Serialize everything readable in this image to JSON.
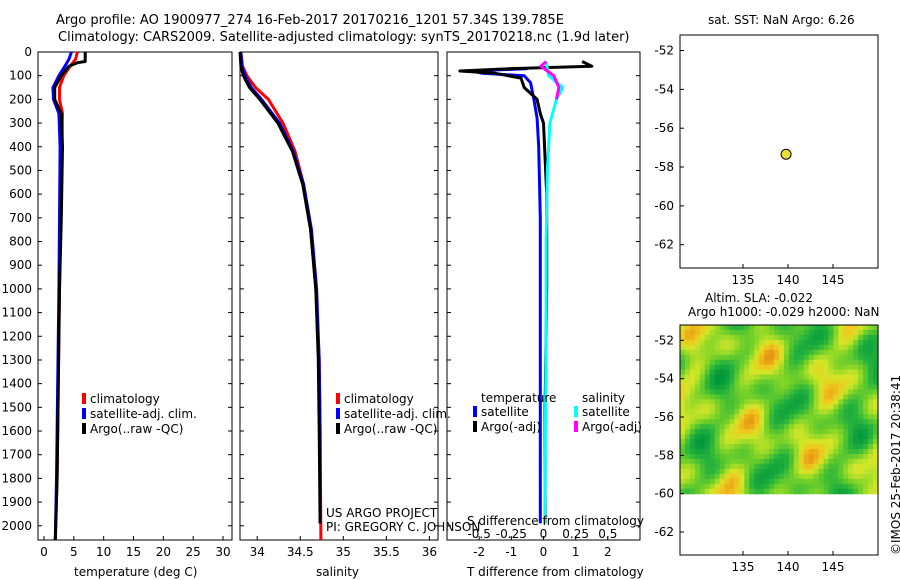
{
  "header": {
    "line1": "Argo profile: AO 1900977_274 16-Feb-2017 20170216_1201 57.34S 139.785E",
    "line2": "Climatology: CARS2009. Satellite-adjusted climatology: synTS_20170218.nc (1.9d later)"
  },
  "depth_axis": {
    "ticks": [
      "0",
      "100",
      "200",
      "300",
      "400",
      "500",
      "600",
      "700",
      "800",
      "900",
      "1000",
      "1100",
      "1200",
      "1300",
      "1400",
      "1500",
      "1600",
      "1700",
      "1800",
      "1900",
      "2000"
    ],
    "ylim": [
      0,
      2060
    ]
  },
  "colors": {
    "climatology": "#ff0000",
    "satellite": "#0000ff",
    "argo": "#000000",
    "sal_satellite": "#00ffff",
    "sal_argo": "#ff00ff",
    "marker": "#e8e030"
  },
  "chart_data": [
    {
      "type": "line",
      "id": "temperature",
      "xlabel": "temperature (deg C)",
      "xlim": [
        -1,
        31.5
      ],
      "xticks": [
        "0",
        "5",
        "10",
        "15",
        "20",
        "25",
        "30"
      ],
      "xtick_values": [
        0,
        5,
        10,
        15,
        20,
        25,
        30
      ],
      "legend": [
        "climatology",
        "satellite-adj. clim.",
        "Argo(..raw -QC)"
      ],
      "series": [
        {
          "name": "climatology",
          "color": "#ff0000",
          "points": [
            [
              5.6,
              0
            ],
            [
              5.3,
              30
            ],
            [
              4.4,
              60
            ],
            [
              3.3,
              100
            ],
            [
              2.6,
              150
            ],
            [
              2.6,
              200
            ],
            [
              3.1,
              260
            ],
            [
              3.0,
              400
            ],
            [
              2.8,
              700
            ],
            [
              2.6,
              1000
            ],
            [
              2.4,
              1400
            ],
            [
              2.2,
              1800
            ],
            [
              1.9,
              2060
            ]
          ]
        },
        {
          "name": "satellite-adj. clim.",
          "color": "#0000ff",
          "points": [
            [
              4.6,
              0
            ],
            [
              4.2,
              30
            ],
            [
              3.5,
              60
            ],
            [
              2.5,
              100
            ],
            [
              1.5,
              150
            ],
            [
              1.6,
              200
            ],
            [
              2.5,
              260
            ],
            [
              2.7,
              400
            ],
            [
              2.6,
              700
            ],
            [
              2.5,
              1000
            ],
            [
              2.3,
              1400
            ],
            [
              2.1,
              1800
            ],
            [
              1.9,
              2060
            ]
          ]
        },
        {
          "name": "Argo(..raw -QC)",
          "color": "#000000",
          "points": [
            [
              6.9,
              0
            ],
            [
              6.9,
              40
            ],
            [
              5.6,
              45
            ],
            [
              4.2,
              60
            ],
            [
              2.9,
              100
            ],
            [
              1.8,
              150
            ],
            [
              1.8,
              200
            ],
            [
              2.9,
              260
            ],
            [
              3.1,
              400
            ],
            [
              2.9,
              700
            ],
            [
              2.6,
              1000
            ],
            [
              2.4,
              1400
            ],
            [
              2.2,
              1800
            ],
            [
              1.9,
              2060
            ]
          ]
        }
      ]
    },
    {
      "type": "line",
      "id": "salinity",
      "xlabel": "salinity",
      "xlim": [
        33.8,
        36.1
      ],
      "xticks": [
        "34",
        "34.5",
        "35",
        "35.5",
        "36"
      ],
      "xtick_values": [
        34,
        34.5,
        35,
        35.5,
        36
      ],
      "legend": [
        "climatology",
        "satellite-adj. clim.",
        "Argo(..raw -QC)"
      ],
      "series": [
        {
          "name": "climatology",
          "color": "#ff0000",
          "points": [
            [
              33.81,
              0
            ],
            [
              33.83,
              60
            ],
            [
              33.88,
              100
            ],
            [
              33.98,
              150
            ],
            [
              34.13,
              200
            ],
            [
              34.3,
              300
            ],
            [
              34.44,
              420
            ],
            [
              34.54,
              560
            ],
            [
              34.62,
              750
            ],
            [
              34.68,
              1000
            ],
            [
              34.72,
              1300
            ],
            [
              34.73,
              1600
            ],
            [
              34.74,
              2060
            ]
          ]
        },
        {
          "name": "satellite-adj. clim.",
          "color": "#0000ff",
          "points": [
            [
              33.81,
              0
            ],
            [
              33.82,
              60
            ],
            [
              33.86,
              100
            ],
            [
              33.93,
              150
            ],
            [
              34.05,
              200
            ],
            [
              34.26,
              300
            ],
            [
              34.42,
              420
            ],
            [
              34.54,
              560
            ],
            [
              34.63,
              750
            ],
            [
              34.69,
              1000
            ],
            [
              34.72,
              1300
            ],
            [
              34.73,
              1600
            ],
            [
              34.73,
              1990
            ]
          ]
        },
        {
          "name": "Argo(..raw -QC)",
          "color": "#000000",
          "points": [
            [
              33.8,
              0
            ],
            [
              33.81,
              60
            ],
            [
              33.84,
              100
            ],
            [
              33.91,
              150
            ],
            [
              34.03,
              200
            ],
            [
              34.24,
              300
            ],
            [
              34.41,
              420
            ],
            [
              34.53,
              560
            ],
            [
              34.62,
              750
            ],
            [
              34.68,
              1000
            ],
            [
              34.71,
              1300
            ],
            [
              34.72,
              1600
            ],
            [
              34.73,
              1990
            ]
          ]
        }
      ],
      "annotation": [
        "US ARGO PROJECT",
        "PI: GREGORY C. JOHNSON"
      ]
    },
    {
      "type": "line",
      "id": "difference",
      "xlabel": "T difference from climatology",
      "xlim": [
        -3,
        3
      ],
      "xticks": [
        "-2",
        "-1",
        "0",
        "1",
        "2"
      ],
      "xtick_values": [
        -2,
        -1,
        0,
        1,
        2
      ],
      "top_label": "S difference from climatology",
      "top_xticks": [
        "-0.5",
        "-0.25",
        "0",
        "0.25",
        "0.5"
      ],
      "top_xtick_values": [
        -0.5,
        -0.25,
        0,
        0.25,
        0.5
      ],
      "legend_temperature": {
        "title": "temperature",
        "items": [
          "satellite",
          "Argo(-adj)"
        ]
      },
      "legend_salinity": {
        "title": "salinity",
        "items": [
          "satellite",
          "Argo(-adj)"
        ]
      },
      "series": [
        {
          "name": "temperature satellite",
          "color": "#0000ff",
          "points": [
            [
              -0.5,
              70
            ],
            [
              -2.2,
              80
            ],
            [
              -1.9,
              90
            ],
            [
              -0.6,
              100
            ],
            [
              -0.4,
              130
            ],
            [
              -0.3,
              200
            ],
            [
              -0.2,
              280
            ],
            [
              -0.15,
              400
            ],
            [
              -0.1,
              700
            ],
            [
              -0.1,
              1000
            ],
            [
              -0.1,
              1500
            ],
            [
              -0.1,
              1990
            ]
          ]
        },
        {
          "name": "temperature Argo(-adj)",
          "color": "#000000",
          "points": [
            [
              1.2,
              40
            ],
            [
              1.5,
              60
            ],
            [
              -1.0,
              70
            ],
            [
              -2.6,
              80
            ],
            [
              -1.5,
              90
            ],
            [
              -0.7,
              110
            ],
            [
              -0.6,
              150
            ],
            [
              -0.2,
              200
            ],
            [
              -0.1,
              260
            ],
            [
              0.0,
              300
            ],
            [
              0.1,
              600
            ],
            [
              0.1,
              1000
            ],
            [
              0.05,
              1500
            ],
            [
              0.05,
              1990
            ]
          ]
        },
        {
          "name": "salinity satellite",
          "color": "#00ffff",
          "points": [
            [
              0.02,
              40
            ],
            [
              0.04,
              100
            ],
            [
              0.15,
              150
            ],
            [
              0.1,
              200
            ],
            [
              0.05,
              300
            ],
            [
              0.03,
              500
            ],
            [
              0.02,
              800
            ],
            [
              0.02,
              1200
            ],
            [
              0.015,
              1600
            ],
            [
              0.01,
              1990
            ]
          ]
        },
        {
          "name": "salinity Argo(-adj)",
          "color": "#ff00ff",
          "points": [
            [
              0.02,
              40
            ],
            [
              -0.02,
              60
            ],
            [
              0.03,
              80
            ],
            [
              0.08,
              100
            ],
            [
              0.12,
              150
            ],
            [
              0.1,
              200
            ]
          ]
        }
      ]
    },
    {
      "type": "scatter",
      "id": "location-map",
      "title": "sat. SST: NaN Argo: 6.26",
      "xlim": [
        128,
        150
      ],
      "ylim": [
        -63.2,
        -51.2
      ],
      "xticks": [
        "135",
        "140",
        "145"
      ],
      "xtick_values": [
        135,
        140,
        145
      ],
      "yticks": [
        "-52",
        "-54",
        "-56",
        "-58",
        "-60",
        "-62"
      ],
      "ytick_values": [
        -52,
        -54,
        -56,
        -58,
        -60,
        -62
      ],
      "points": [
        [
          139.785,
          -57.34
        ]
      ]
    },
    {
      "type": "heatmap",
      "id": "altimetry-map",
      "title_line1": "Altim. SLA: -0.022",
      "title_line2": "Argo h1000: -0.029 h2000: NaN",
      "xlim": [
        128,
        150
      ],
      "ylim": [
        -63.2,
        -51.2
      ],
      "data_extent": {
        "x": [
          128,
          150
        ],
        "y": [
          -60,
          -51.2
        ]
      },
      "xticks": [
        "135",
        "140",
        "145"
      ],
      "xtick_values": [
        135,
        140,
        145
      ],
      "yticks": [
        "-52",
        "-54",
        "-56",
        "-58",
        "-60",
        "-62"
      ],
      "ytick_values": [
        -52,
        -54,
        -56,
        -58,
        -60,
        -62
      ]
    }
  ],
  "watermark": "©IMOS 25-Feb-2017 20:38:41"
}
